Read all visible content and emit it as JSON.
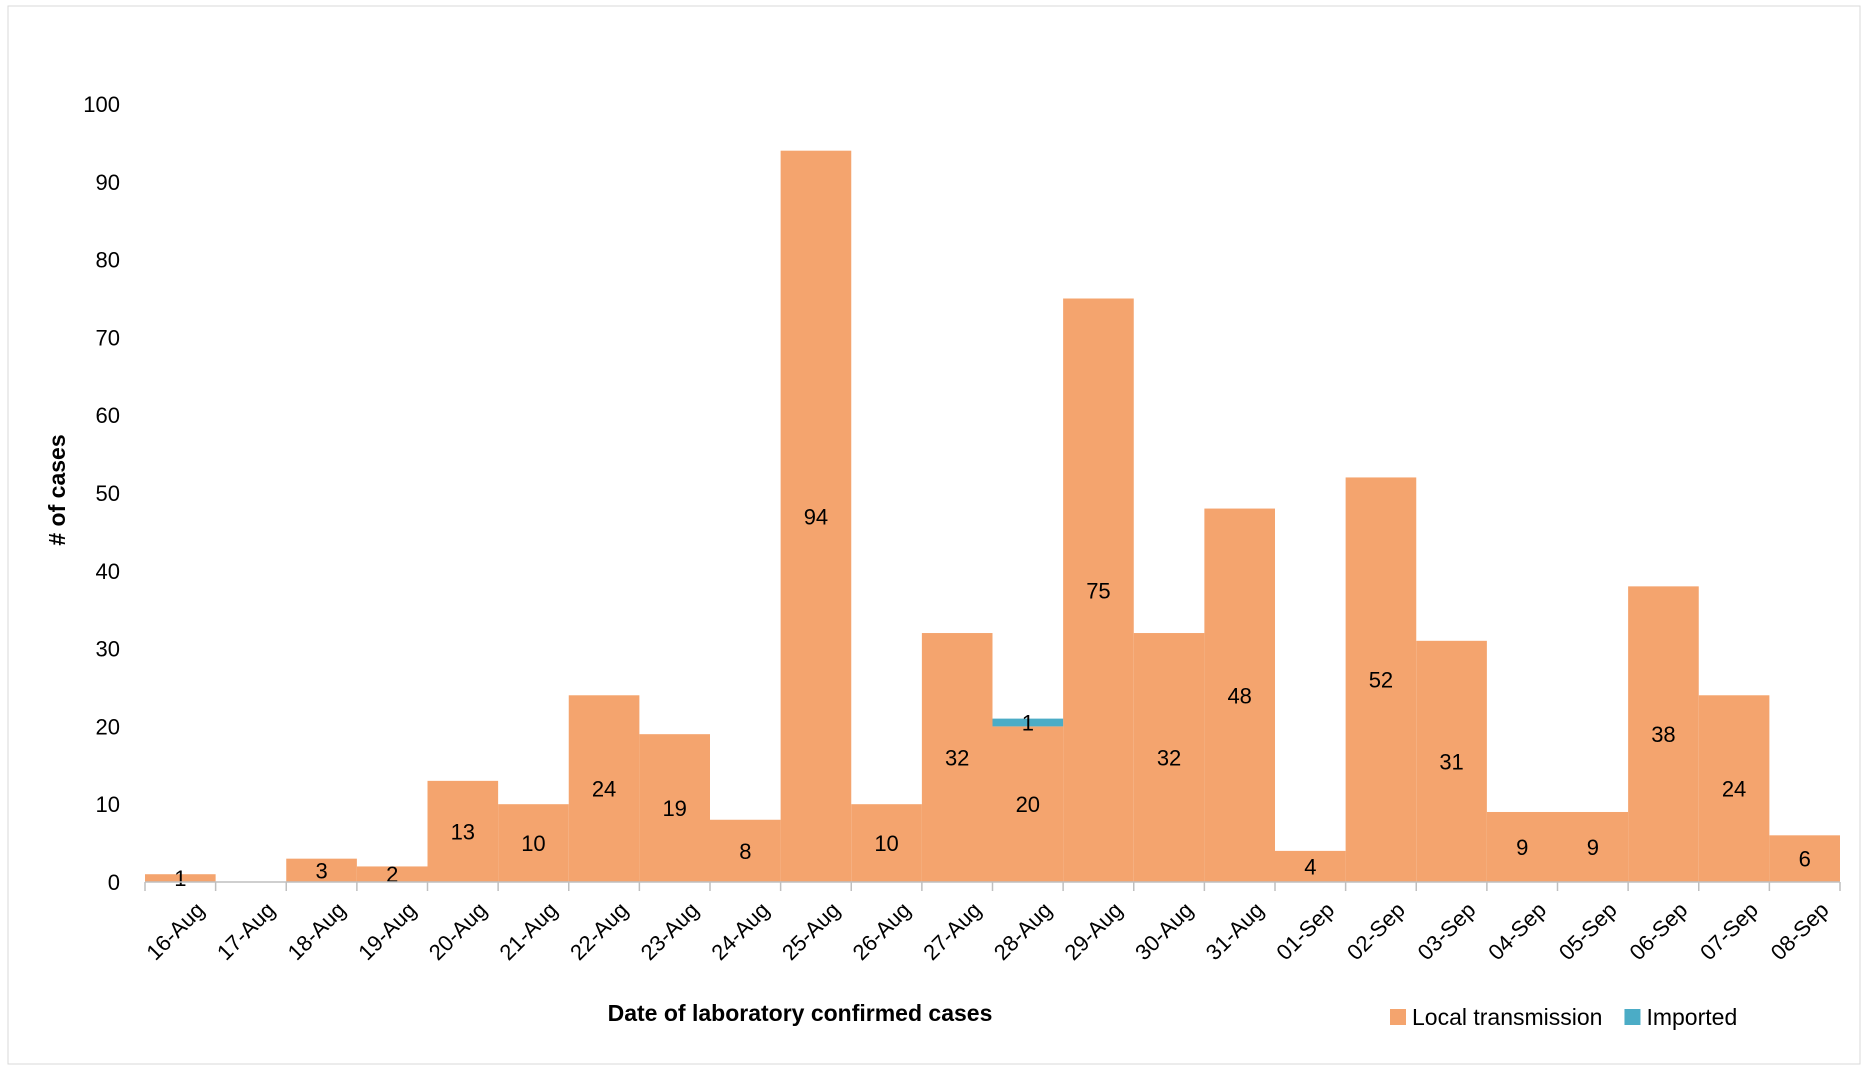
{
  "chart_data": {
    "type": "bar",
    "stacked": true,
    "categories": [
      "16-Aug",
      "17-Aug",
      "18-Aug",
      "19-Aug",
      "20-Aug",
      "21-Aug",
      "22-Aug",
      "23-Aug",
      "24-Aug",
      "25-Aug",
      "26-Aug",
      "27-Aug",
      "28-Aug",
      "29-Aug",
      "30-Aug",
      "31-Aug",
      "01-Sep",
      "02-Sep",
      "03-Sep",
      "04-Sep",
      "05-Sep",
      "06-Sep",
      "07-Sep",
      "08-Sep"
    ],
    "series": [
      {
        "name": "Local transmission",
        "color": "#f4a46e",
        "values": [
          1,
          0,
          3,
          2,
          13,
          10,
          24,
          19,
          8,
          94,
          10,
          32,
          20,
          75,
          32,
          48,
          4,
          52,
          31,
          9,
          9,
          38,
          24,
          6
        ]
      },
      {
        "name": "Imported",
        "color": "#4bacc6",
        "values": [
          0,
          0,
          0,
          0,
          0,
          0,
          0,
          0,
          0,
          0,
          0,
          0,
          1,
          0,
          0,
          0,
          0,
          0,
          0,
          0,
          0,
          0,
          0,
          0
        ]
      }
    ],
    "xlabel": "Date of laboratory confirmed cases",
    "ylabel": "# of cases",
    "ylim": [
      0,
      100
    ],
    "yticks": [
      0,
      10,
      20,
      30,
      40,
      50,
      60,
      70,
      80,
      90,
      100
    ],
    "grid": false,
    "legend_position": "bottom-right"
  }
}
